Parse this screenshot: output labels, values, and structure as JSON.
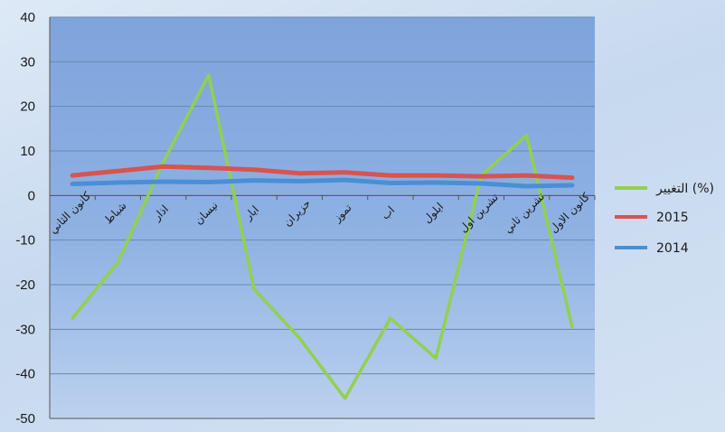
{
  "chart_data": {
    "type": "line",
    "categories": [
      "كانون الثاني",
      "شباط",
      "اذار",
      "نيسان",
      "ايار",
      "حزيران",
      "تموز",
      "اب",
      "ايلول",
      "تشرين اول",
      "تشرين ثاني",
      "كانون الاول"
    ],
    "ylim": [
      -50,
      40
    ],
    "yticks": [
      40,
      30,
      20,
      10,
      0,
      -10,
      -20,
      -30,
      -40,
      -50
    ],
    "grid": true,
    "legend_position": "right",
    "series": [
      {
        "name": "التغيير (%)",
        "color": "#92d050",
        "values": [
          -27.5,
          -15,
          7.5,
          27,
          -21,
          -32,
          -45.5,
          -27.5,
          -36.5,
          4.5,
          13.5,
          -29.5
        ]
      },
      {
        "name": "2015",
        "color": "#d9534f",
        "values": [
          4.5,
          5.5,
          6.5,
          6.2,
          5.8,
          5.0,
          5.2,
          4.5,
          4.5,
          4.3,
          4.5,
          4.0
        ]
      },
      {
        "name": "2014",
        "color": "#4a8fd6",
        "values": [
          2.6,
          2.9,
          3.1,
          3.0,
          3.4,
          3.2,
          3.5,
          2.8,
          2.9,
          2.7,
          2.1,
          2.3
        ]
      }
    ]
  }
}
